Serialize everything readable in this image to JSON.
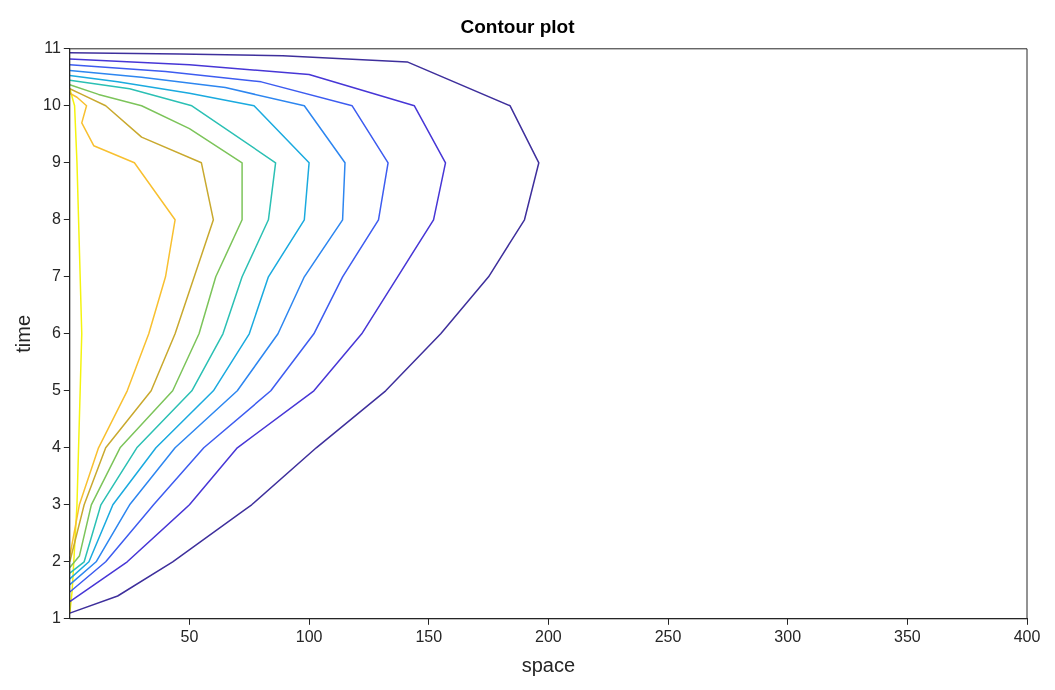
{
  "chart_data": {
    "type": "line",
    "title": "Contour plot",
    "xlabel": "space",
    "ylabel": "time",
    "xlim": [
      0,
      400
    ],
    "xticks": [
      50,
      100,
      150,
      200,
      250,
      300,
      350,
      400
    ],
    "ylim": [
      1,
      11
    ],
    "yticks": [
      1,
      2,
      3,
      4,
      5,
      6,
      7,
      8,
      9,
      10,
      11
    ],
    "grid": false,
    "legend": false,
    "marker": "none",
    "line_style": "solid",
    "series": [
      {
        "color": "#3e2f9c",
        "x": [
          0,
          20,
          43,
          76,
          103,
          132,
          155,
          175,
          190,
          196,
          184,
          141,
          89,
          46,
          0
        ],
        "values": [
          1.1,
          1.4,
          2,
          3,
          4,
          5,
          6,
          7,
          8,
          9,
          10,
          10.77,
          10.88,
          10.91,
          10.93
        ]
      },
      {
        "color": "#4736d6",
        "x": [
          0,
          24,
          50,
          70,
          102,
          122,
          137,
          152,
          157,
          144,
          100,
          50,
          0
        ],
        "values": [
          1.3,
          2,
          3,
          4,
          5,
          6,
          7,
          8,
          9,
          10,
          10.55,
          10.72,
          10.82
        ]
      },
      {
        "color": "#3d5cf0",
        "x": [
          0,
          15,
          35,
          56,
          84,
          102,
          114,
          129,
          133,
          118,
          80,
          40,
          0
        ],
        "values": [
          1.47,
          2,
          3,
          4,
          5,
          6,
          7,
          8,
          9,
          10,
          10.42,
          10.6,
          10.72
        ]
      },
      {
        "color": "#2d86f0",
        "x": [
          0,
          11,
          25,
          44,
          70,
          87,
          98,
          114,
          115,
          98,
          65,
          30,
          0
        ],
        "values": [
          1.6,
          2,
          3,
          4,
          5,
          6,
          7,
          8,
          9,
          10,
          10.32,
          10.5,
          10.62
        ]
      },
      {
        "color": "#1aaadf",
        "x": [
          0,
          8,
          18,
          36,
          60,
          75,
          83,
          98,
          100,
          77,
          50,
          20,
          0
        ],
        "values": [
          1.7,
          2,
          3,
          4,
          5,
          6,
          7,
          8,
          9,
          10,
          10.22,
          10.42,
          10.53
        ]
      },
      {
        "color": "#2bc0b4",
        "x": [
          0,
          6,
          13,
          28,
          51,
          64,
          72,
          83,
          86,
          51,
          25,
          0
        ],
        "values": [
          1.8,
          2,
          3,
          4,
          5,
          6,
          7,
          8,
          9,
          10,
          10.3,
          10.45
        ]
      },
      {
        "color": "#7cc45a",
        "x": [
          0,
          4,
          9,
          21,
          43,
          54,
          61,
          72,
          72,
          50,
          30,
          12,
          0
        ],
        "values": [
          1.9,
          2.1,
          3,
          4,
          5,
          6,
          7,
          8,
          9,
          9.6,
          10,
          10.2,
          10.37
        ]
      },
      {
        "color": "#c9a92e",
        "x": [
          0,
          6,
          15,
          34,
          44,
          52,
          60,
          55,
          30,
          15,
          5,
          0
        ],
        "values": [
          2,
          3,
          4,
          5,
          6,
          7,
          8,
          9,
          9.45,
          10,
          10.2,
          10.3
        ]
      },
      {
        "color": "#f8c030",
        "x": [
          0,
          4,
          12,
          24,
          33,
          40,
          44,
          27,
          10,
          5,
          7,
          3,
          0
        ],
        "values": [
          2.1,
          3,
          4,
          5,
          6,
          7,
          8,
          9,
          9.3,
          9.7,
          10,
          10.15,
          10.22
        ]
      },
      {
        "color": "#f4f40e",
        "x": [
          0,
          1,
          3,
          5,
          3,
          2,
          0
        ],
        "values": [
          1.1,
          1.5,
          3,
          6,
          9,
          10,
          10.3
        ]
      }
    ]
  }
}
